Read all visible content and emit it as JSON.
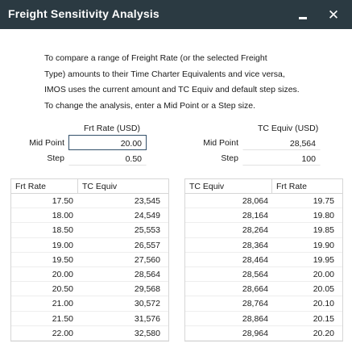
{
  "window": {
    "title": "Freight Sensitivity Analysis",
    "minimize_icon": "minimize-icon",
    "close_icon": "close-icon"
  },
  "description": [
    "To compare a range of Freight Rate (or the selected Freight",
    "Type) amounts to their Time Charter Equivalents and vice versa,",
    "IMOS uses the current amount and TC Equiv and default step sizes.",
    "To change the analysis, enter a Mid Point or a Step size."
  ],
  "left_panel": {
    "column_header": "Frt Rate (USD)",
    "mid_point_label": "Mid Point",
    "step_label": "Step",
    "mid_point_value": "20.00",
    "step_value": "0.50"
  },
  "right_panel": {
    "column_header": "TC Equiv (USD)",
    "mid_point_label": "Mid Point",
    "step_label": "Step",
    "mid_point_value": "28,564",
    "step_value": "100"
  },
  "left_table": {
    "columns": [
      "Frt Rate",
      "TC Equiv"
    ],
    "rows": [
      [
        "17.50",
        "23,545"
      ],
      [
        "18.00",
        "24,549"
      ],
      [
        "18.50",
        "25,553"
      ],
      [
        "19.00",
        "26,557"
      ],
      [
        "19.50",
        "27,560"
      ],
      [
        "20.00",
        "28,564"
      ],
      [
        "20.50",
        "29,568"
      ],
      [
        "21.00",
        "30,572"
      ],
      [
        "21.50",
        "31,576"
      ],
      [
        "22.00",
        "32,580"
      ]
    ]
  },
  "right_table": {
    "columns": [
      "TC Equiv",
      "Frt Rate"
    ],
    "rows": [
      [
        "28,064",
        "19.75"
      ],
      [
        "28,164",
        "19.80"
      ],
      [
        "28,264",
        "19.85"
      ],
      [
        "28,364",
        "19.90"
      ],
      [
        "28,464",
        "19.95"
      ],
      [
        "28,564",
        "20.00"
      ],
      [
        "28,664",
        "20.05"
      ],
      [
        "28,764",
        "20.10"
      ],
      [
        "28,864",
        "20.15"
      ],
      [
        "28,964",
        "20.20"
      ]
    ]
  }
}
